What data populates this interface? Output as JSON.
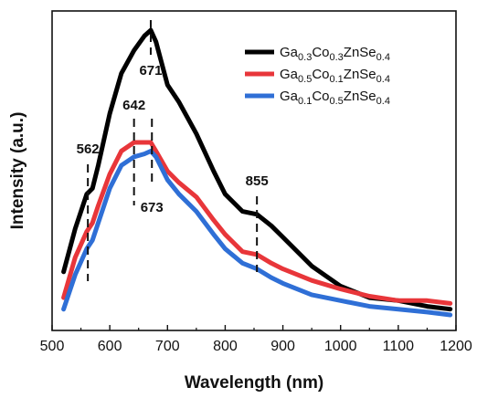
{
  "chart_data": {
    "type": "line",
    "xlabel": "Wavelength (nm)",
    "ylabel": "Intensity (a.u.)",
    "xlim": [
      500,
      1200
    ],
    "ylim": [
      0,
      1.0
    ],
    "x_ticks": [
      500,
      600,
      700,
      800,
      900,
      1000,
      1100,
      1200
    ],
    "y_ticks_shown": false,
    "grid": false,
    "legend_position": "top-right",
    "x": [
      520,
      540,
      560,
      570,
      580,
      600,
      620,
      642,
      660,
      671,
      680,
      700,
      720,
      750,
      780,
      800,
      830,
      855,
      880,
      900,
      950,
      1000,
      1050,
      1100,
      1150,
      1190
    ],
    "series": [
      {
        "name_parts": [
          "Ga",
          "0.3",
          "Co",
          "0.3",
          "ZnSe",
          "0.4"
        ],
        "color": "#000000",
        "values": [
          0.15,
          0.3,
          0.42,
          0.44,
          0.52,
          0.7,
          0.84,
          0.92,
          0.97,
          0.99,
          0.95,
          0.8,
          0.74,
          0.63,
          0.5,
          0.42,
          0.36,
          0.35,
          0.31,
          0.27,
          0.17,
          0.1,
          0.06,
          0.05,
          0.03,
          0.02
        ]
      },
      {
        "name_parts": [
          "Ga",
          "0.5",
          "Co",
          "0.1",
          "ZnSe",
          "0.4"
        ],
        "color": "#e8363a",
        "values": [
          0.06,
          0.2,
          0.29,
          0.32,
          0.38,
          0.49,
          0.57,
          0.6,
          0.6,
          0.6,
          0.57,
          0.5,
          0.46,
          0.41,
          0.33,
          0.28,
          0.22,
          0.21,
          0.18,
          0.16,
          0.12,
          0.09,
          0.065,
          0.05,
          0.05,
          0.04
        ]
      },
      {
        "name_parts": [
          "Ga",
          "0.1",
          "Co",
          "0.5",
          "ZnSe",
          "0.4"
        ],
        "color": "#2f6fd6",
        "values": [
          0.02,
          0.14,
          0.23,
          0.26,
          0.32,
          0.44,
          0.52,
          0.55,
          0.56,
          0.57,
          0.55,
          0.47,
          0.42,
          0.36,
          0.28,
          0.23,
          0.18,
          0.16,
          0.13,
          0.11,
          0.07,
          0.05,
          0.03,
          0.02,
          0.01,
          0.0
        ]
      }
    ],
    "annotations": [
      {
        "label": "562",
        "x": 562
      },
      {
        "label": "642",
        "x": 642
      },
      {
        "label": "671",
        "x": 671
      },
      {
        "label": "673",
        "x": 673
      },
      {
        "label": "855",
        "x": 855
      }
    ]
  }
}
